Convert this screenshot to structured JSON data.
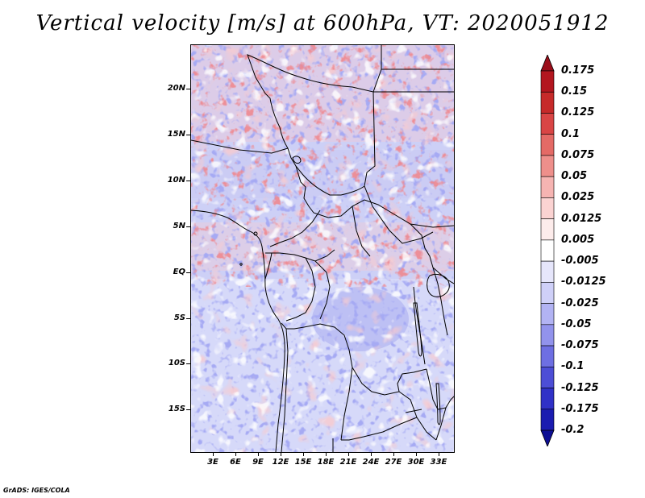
{
  "title": "Vertical velocity [m/s] at 600hPa, VT: 2020051912",
  "credit": "GrADS: IGES/COLA",
  "map": {
    "lat_labels": [
      "20N",
      "15N",
      "10N",
      "5N",
      "EQ",
      "5S",
      "10S",
      "15S"
    ],
    "lat_values": [
      20,
      15,
      10,
      5,
      0,
      -5,
      -10,
      -15
    ],
    "lon_labels": [
      "3E",
      "6E",
      "9E",
      "12E",
      "15E",
      "18E",
      "21E",
      "24E",
      "27E",
      "30E",
      "33E"
    ],
    "lon_values": [
      3,
      6,
      9,
      12,
      15,
      18,
      21,
      24,
      27,
      30,
      33
    ],
    "lat_range": [
      -20,
      24.5
    ],
    "lon_range": [
      0.5,
      35.5
    ]
  },
  "colorbar": {
    "labels": [
      "0.175",
      "0.15",
      "0.125",
      "0.1",
      "0.075",
      "0.05",
      "0.025",
      "0.0125",
      "0.005",
      "-0.005",
      "-0.0125",
      "-0.025",
      "-0.05",
      "-0.075",
      "-0.1",
      "-0.125",
      "-0.175",
      "-0.2"
    ],
    "colors": [
      "#9b0e1a",
      "#b3161f",
      "#c62a2a",
      "#d94545",
      "#e46a66",
      "#ee8f8b",
      "#f6b4b2",
      "#fbd3d2",
      "#fdeceb",
      "#ffffff",
      "#e6e6fb",
      "#cfd0f8",
      "#b2b3f3",
      "#9293ec",
      "#6e6fe2",
      "#4d4ed6",
      "#3031c7",
      "#1b1cb0",
      "#0d0e94"
    ]
  },
  "chart_data": {
    "type": "heatmap",
    "title": "Vertical velocity [m/s] at 600hPa, VT: 2020051912",
    "variable": "vertical velocity",
    "units": "m/s",
    "level": "600hPa",
    "valid_time": "2020051912",
    "x": "longitude (degrees E)",
    "y": "latitude (degrees)",
    "xlim": [
      0.5,
      35.5
    ],
    "ylim": [
      -20,
      24.5
    ],
    "contour_levels": [
      -0.2,
      -0.175,
      -0.125,
      -0.1,
      -0.075,
      -0.05,
      -0.025,
      -0.0125,
      -0.005,
      0.005,
      0.0125,
      0.025,
      0.05,
      0.075,
      0.1,
      0.125,
      0.15,
      0.175
    ]
  }
}
